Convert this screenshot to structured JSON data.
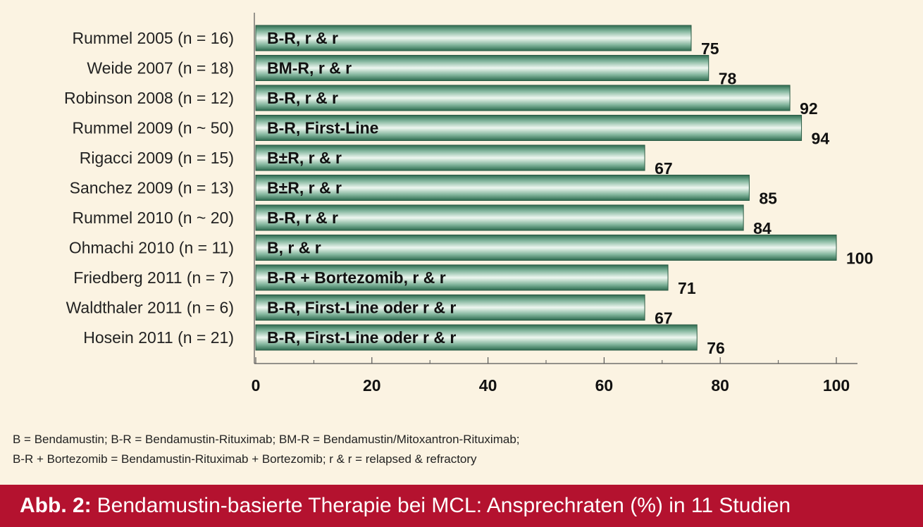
{
  "chart_data": {
    "type": "bar",
    "orientation": "horizontal",
    "categories": [
      "Rummel 2005 (n = 16)",
      "Weide 2007 (n = 18)",
      "Robinson 2008 (n = 12)",
      "Rummel 2009 (n ~ 50)",
      "Rigacci 2009 (n = 15)",
      "Sanchez 2009 (n = 13)",
      "Rummel 2010 (n ~ 20)",
      "Ohmachi 2010 (n = 11)",
      "Friedberg 2011 (n = 7)",
      "Waldthaler 2011 (n = 6)",
      "Hosein 2011 (n = 21)"
    ],
    "bar_labels": [
      "B-R, r & r",
      "BM-R, r & r",
      "B-R, r & r",
      "B-R, First-Line",
      "B±R, r & r",
      "B±R, r & r",
      "B-R, r & r",
      "B, r & r",
      "B-R + Bortezomib, r & r",
      "B-R, First-Line oder r & r",
      "B-R, First-Line oder r & r"
    ],
    "values": [
      75,
      78,
      92,
      94,
      67,
      85,
      84,
      100,
      71,
      67,
      76
    ],
    "xlim": [
      0,
      100
    ],
    "xticks": [
      0,
      20,
      40,
      60,
      80,
      100
    ],
    "grid": false,
    "bar_color": "#4f8c6f"
  },
  "legend_lines": [
    "B = Bendamustin; B-R = Bendamustin-Rituximab; BM-R = Bendamustin/Mitoxantron-Rituximab;",
    "B-R + Bortezomib = Bendamustin-Rituximab + Bortezomib; r & r = relapsed & refractory"
  ],
  "caption": {
    "prefix": "Abb. 2:",
    "text": "Bendamustin-basierte Therapie bei MCL: Ansprechraten (%) in 11 Studien",
    "background": "#b4122f"
  }
}
